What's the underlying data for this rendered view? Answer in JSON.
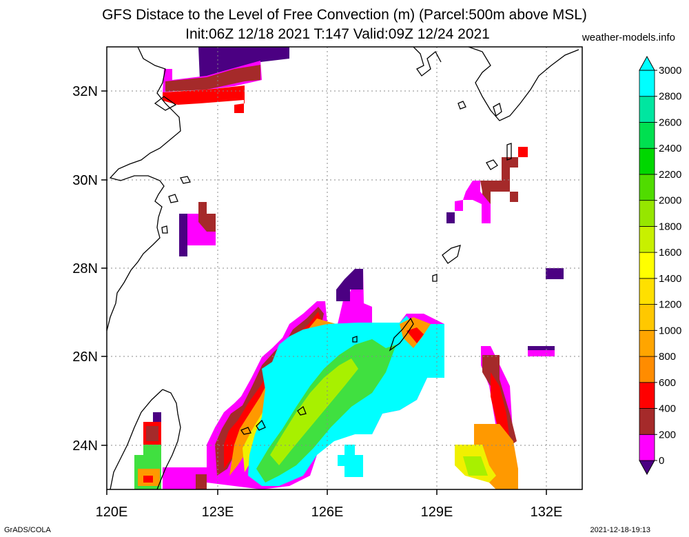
{
  "header": {
    "title_line1": "GFS Distace to the Level of Free Convection (m) (Parcel:500m above MSL)",
    "title_line2": "Init:06Z 12/18 2021 T:147 Valid:09Z 12/24 2021",
    "site": "weather-models.info"
  },
  "footer": {
    "left": "GrADS/COLA",
    "right": "2021-12-18-19:13"
  },
  "map": {
    "lon_ticks": [
      "120E",
      "123E",
      "126E",
      "129E",
      "132E"
    ],
    "lat_ticks": [
      "24N",
      "26N",
      "28N",
      "30N",
      "32N"
    ],
    "grid": true
  },
  "colorbar": {
    "labels": [
      "0",
      "200",
      "400",
      "600",
      "800",
      "1000",
      "1200",
      "1400",
      "1600",
      "1800",
      "2000",
      "2200",
      "2400",
      "2600",
      "2800",
      "3000"
    ],
    "colors": [
      "#4b0082",
      "#ff00ff",
      "#a52a2a",
      "#ff0000",
      "#ff8c00",
      "#ffa500",
      "#ffc800",
      "#ffe000",
      "#ffff00",
      "#c8f000",
      "#96e600",
      "#50dc00",
      "#00d700",
      "#00e050",
      "#00e6a0",
      "#00ffff",
      "#00ffff"
    ]
  },
  "palette": {
    "indigo": "#4b0082",
    "magenta": "#ff00ff",
    "brown": "#a52a2a",
    "red": "#ff0000",
    "orange": "#ff9900",
    "yelloworange": "#ffc000",
    "yellow": "#f0f000",
    "lime": "#a8f000",
    "green": "#40e040",
    "aqua": "#00ffff"
  }
}
